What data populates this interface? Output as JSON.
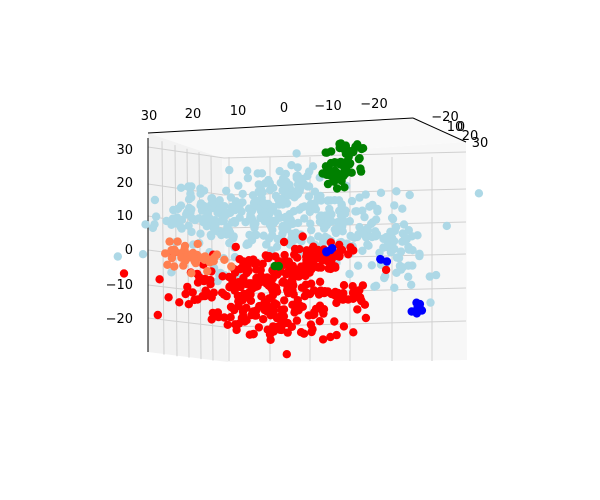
{
  "chart_data": {
    "type": "scatter",
    "projection": "3d",
    "title": "",
    "xlabel": "",
    "ylabel": "",
    "zlabel": "",
    "grid": true,
    "legend": "none",
    "xlim": [
      -30,
      30
    ],
    "ylim": [
      -20,
      30
    ],
    "zlim": [
      -30,
      35
    ],
    "x_ticks": [
      "30",
      "20",
      "10",
      "0",
      "−10",
      "−20"
    ],
    "y_ticks": [
      "−20",
      "−10",
      "0",
      "10",
      "20",
      "30"
    ],
    "z_ticks": [
      "30",
      "20",
      "10",
      "0",
      "−10",
      "−20"
    ],
    "series": [
      {
        "color": "#add8e6",
        "clusters": [
          {
            "x": 2,
            "z": 10,
            "sx": 12,
            "sz": 6,
            "n": 220
          },
          {
            "x": -10,
            "z": 6,
            "sx": 8,
            "sz": 5,
            "n": 80
          },
          {
            "x": 16,
            "z": 9,
            "sx": 6,
            "sz": 4,
            "n": 60
          },
          {
            "x": 0,
            "z": 19,
            "sx": 5,
            "sz": 3,
            "n": 40
          },
          {
            "x": -23,
            "z": -3,
            "sx": 3,
            "sz": 5,
            "n": 45
          },
          {
            "x": 14,
            "z": -8,
            "sx": 4,
            "sz": 2,
            "n": 15
          }
        ]
      },
      {
        "color": "#ff0000",
        "clusters": [
          {
            "x": 5,
            "z": -11,
            "sx": 9,
            "sz": 5,
            "n": 220
          },
          {
            "x": 1,
            "z": -21,
            "sx": 6,
            "sz": 3,
            "n": 60
          },
          {
            "x": -6,
            "z": -3,
            "sx": 4,
            "sz": 3,
            "n": 40
          }
        ],
        "trails": [
          {
            "from": [
              -4,
              -3
            ],
            "to": [
              -14,
              0
            ],
            "n": 25
          },
          {
            "from": [
              -6,
              -12
            ],
            "to": [
              -16,
              -15
            ],
            "n": 25
          }
        ]
      },
      {
        "color": "#008000",
        "clusters": [
          {
            "x": -11,
            "z": 23,
            "sx": 2,
            "sz": 3,
            "n": 50
          },
          {
            "x": -13,
            "z": 30,
            "sx": 2,
            "sz": 1,
            "n": 15
          },
          {
            "x": 2,
            "z": -5,
            "sx": 0.6,
            "sz": 0.6,
            "n": 3
          }
        ]
      },
      {
        "color": "#0000ff",
        "clusters": [
          {
            "x": -27,
            "z": -17,
            "sx": 1,
            "sz": 1.2,
            "n": 12
          },
          {
            "x": -9,
            "z": 0,
            "sx": 0.5,
            "sz": 0.5,
            "n": 4
          },
          {
            "x": -20,
            "z": -3,
            "sx": 0.5,
            "sz": 0.5,
            "n": 3
          }
        ]
      },
      {
        "color": "#ff7f50",
        "clusters": [
          {
            "x": 18,
            "z": -3,
            "sx": 3,
            "sz": 1.5,
            "n": 25
          },
          {
            "x": 22,
            "z": 0,
            "sx": 2,
            "sz": 1.5,
            "n": 15
          }
        ]
      }
    ]
  }
}
